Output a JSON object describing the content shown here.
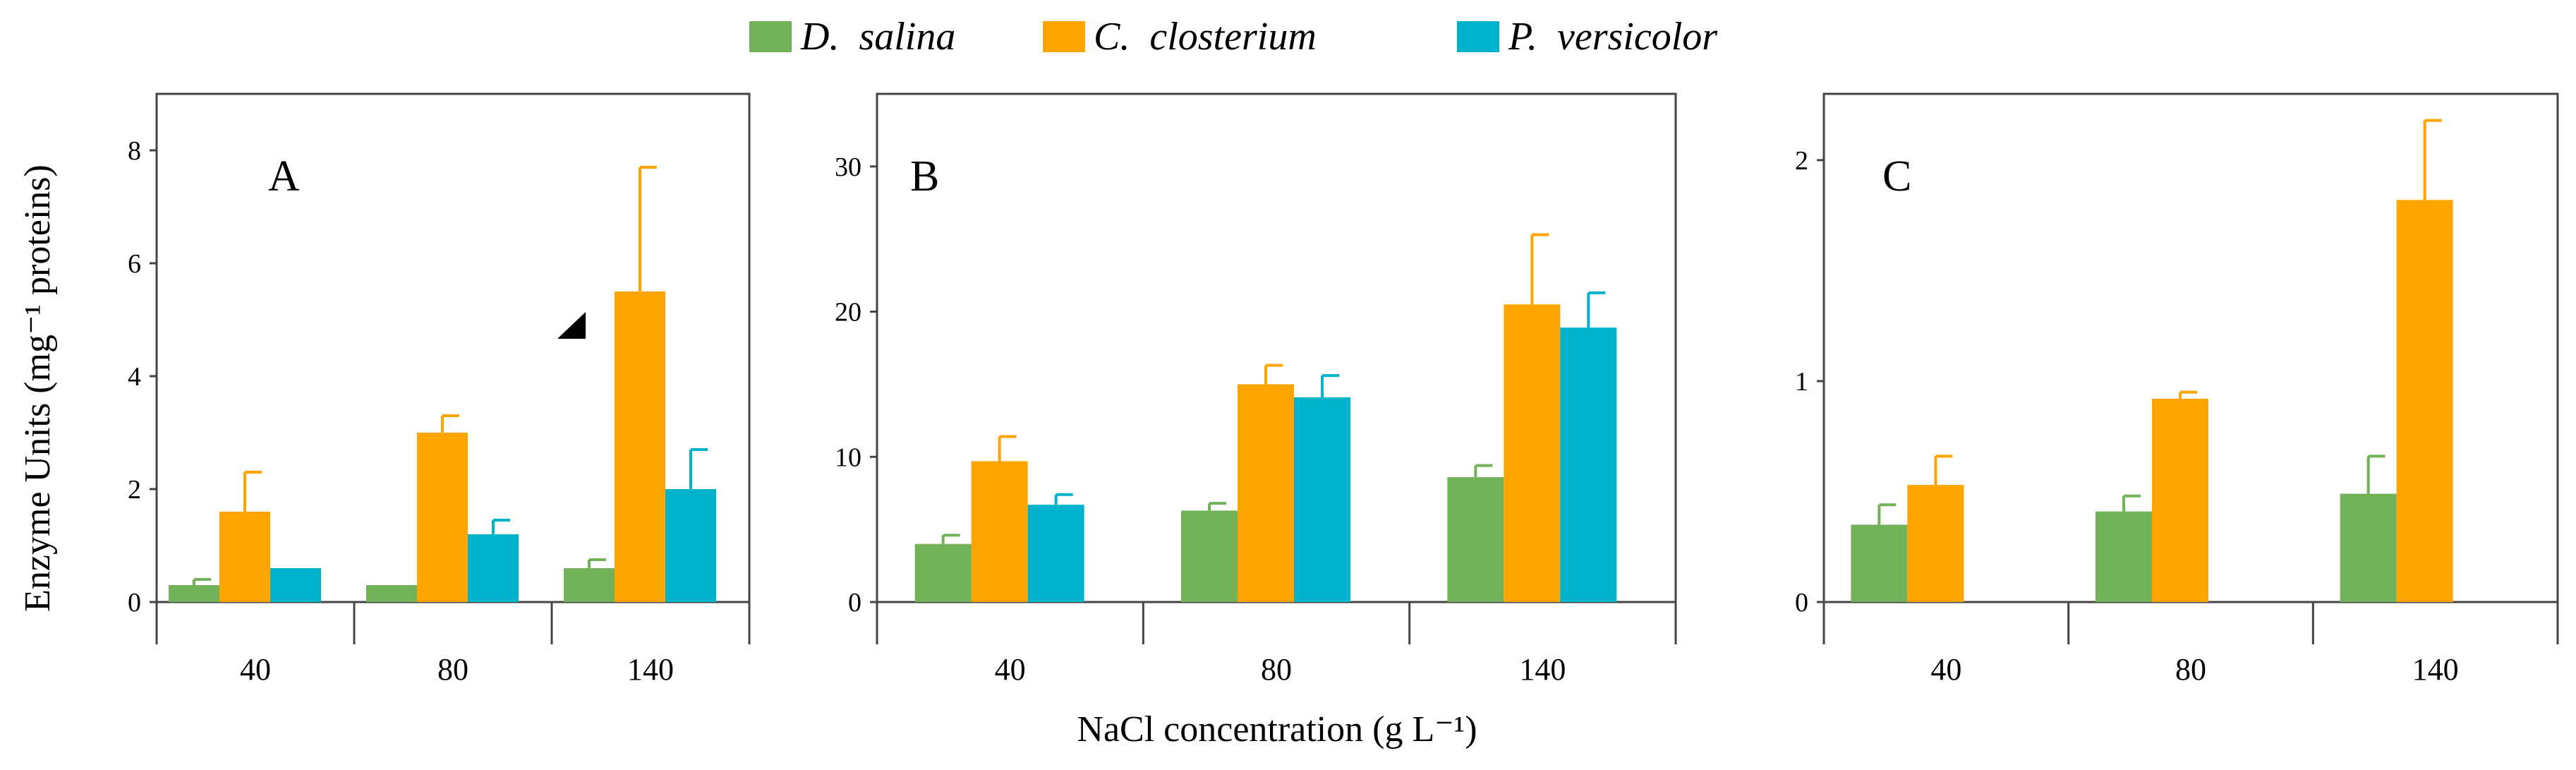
{
  "legend": [
    {
      "name": "D.  salina",
      "color": "#72b35a"
    },
    {
      "name": "C.  closterium",
      "color": "#ffa500"
    },
    {
      "name": "P.  versicolor",
      "color": "#00b3cc"
    }
  ],
  "ylabel": "Enzyme Units (mg⁻¹ proteins)",
  "xlabel": "NaCl concentration (g L⁻¹)",
  "chart_data": [
    {
      "type": "bar",
      "title": "A",
      "categories": [
        "40",
        "80",
        "140"
      ],
      "ylim": [
        0,
        9
      ],
      "yticks": [
        "0",
        "2",
        "4",
        "6",
        "8"
      ],
      "series": [
        {
          "name": "D. salina",
          "values": [
            0.3,
            0.3,
            0.6
          ],
          "errors": [
            0.1,
            0.0,
            0.15
          ]
        },
        {
          "name": "C. closterium",
          "values": [
            1.6,
            3.0,
            5.5
          ],
          "errors": [
            0.7,
            0.3,
            2.2
          ]
        },
        {
          "name": "P. versicolor",
          "values": [
            0.6,
            1.2,
            2.0
          ],
          "errors": [
            0.0,
            0.25,
            0.7
          ]
        }
      ]
    },
    {
      "type": "bar",
      "title": "B",
      "categories": [
        "40",
        "80",
        "140"
      ],
      "ylim": [
        0,
        35
      ],
      "yticks": [
        "0",
        "10",
        "20",
        "30"
      ],
      "series": [
        {
          "name": "D. salina",
          "values": [
            4.0,
            6.3,
            8.6
          ],
          "errors": [
            0.6,
            0.5,
            0.8
          ]
        },
        {
          "name": "C. closterium",
          "values": [
            9.7,
            15.0,
            20.5
          ],
          "errors": [
            1.7,
            1.3,
            4.8
          ]
        },
        {
          "name": "P. versicolor",
          "values": [
            6.7,
            14.1,
            18.9
          ],
          "errors": [
            0.7,
            1.5,
            2.4
          ]
        }
      ]
    },
    {
      "type": "bar",
      "title": "C",
      "categories": [
        "40",
        "80",
        "140"
      ],
      "ylim": [
        0,
        2.3
      ],
      "yticks": [
        "0",
        "1",
        "2"
      ],
      "series": [
        {
          "name": "D. salina",
          "values": [
            0.35,
            0.41,
            0.49
          ],
          "errors": [
            0.09,
            0.07,
            0.17
          ]
        },
        {
          "name": "C. closterium",
          "values": [
            0.53,
            0.92,
            1.82
          ],
          "errors": [
            0.13,
            0.03,
            0.36
          ]
        }
      ]
    }
  ]
}
